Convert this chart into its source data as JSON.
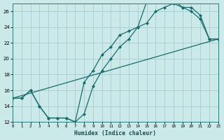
{
  "xlabel": "Humidex (Indice chaleur)",
  "bg_color": "#cce9ea",
  "grid_color": "#aacfd2",
  "line_color": "#1a6b6b",
  "xlim": [
    0,
    23
  ],
  "ylim": [
    12,
    27
  ],
  "xticks": [
    0,
    1,
    2,
    3,
    4,
    5,
    6,
    7,
    8,
    9,
    10,
    11,
    12,
    13,
    14,
    15,
    16,
    17,
    18,
    19,
    20,
    21,
    22,
    23
  ],
  "yticks": [
    12,
    14,
    16,
    18,
    20,
    22,
    24,
    26
  ],
  "curve1_x": [
    0,
    1,
    2,
    3,
    4,
    5,
    6,
    7,
    8,
    9,
    10,
    11,
    12,
    13,
    14,
    15,
    16,
    17,
    18,
    19,
    20,
    21,
    22,
    23
  ],
  "curve1_y": [
    15,
    15,
    16,
    14,
    12.5,
    12.5,
    12.5,
    12,
    17,
    18.5,
    20.5,
    21.5,
    23,
    23.5,
    24,
    27.2,
    27.4,
    27.5,
    27.5,
    26.5,
    26,
    25,
    22.5,
    22.5
  ],
  "curve2_x": [
    0,
    1,
    2,
    3,
    4,
    5,
    6,
    7,
    8,
    9,
    10,
    11,
    12,
    13,
    14,
    15,
    16,
    17,
    18,
    19,
    20,
    21,
    22,
    23
  ],
  "curve2_y": [
    15,
    15,
    16,
    14,
    12.5,
    12.5,
    12.5,
    12,
    13.0,
    16.5,
    18.5,
    20.0,
    21.5,
    22.5,
    24.0,
    24.5,
    26.0,
    26.5,
    27.0,
    26.5,
    26.5,
    25.5,
    22.5,
    22.5
  ],
  "trend_x": [
    0,
    23
  ],
  "trend_y": [
    15,
    22.5
  ]
}
